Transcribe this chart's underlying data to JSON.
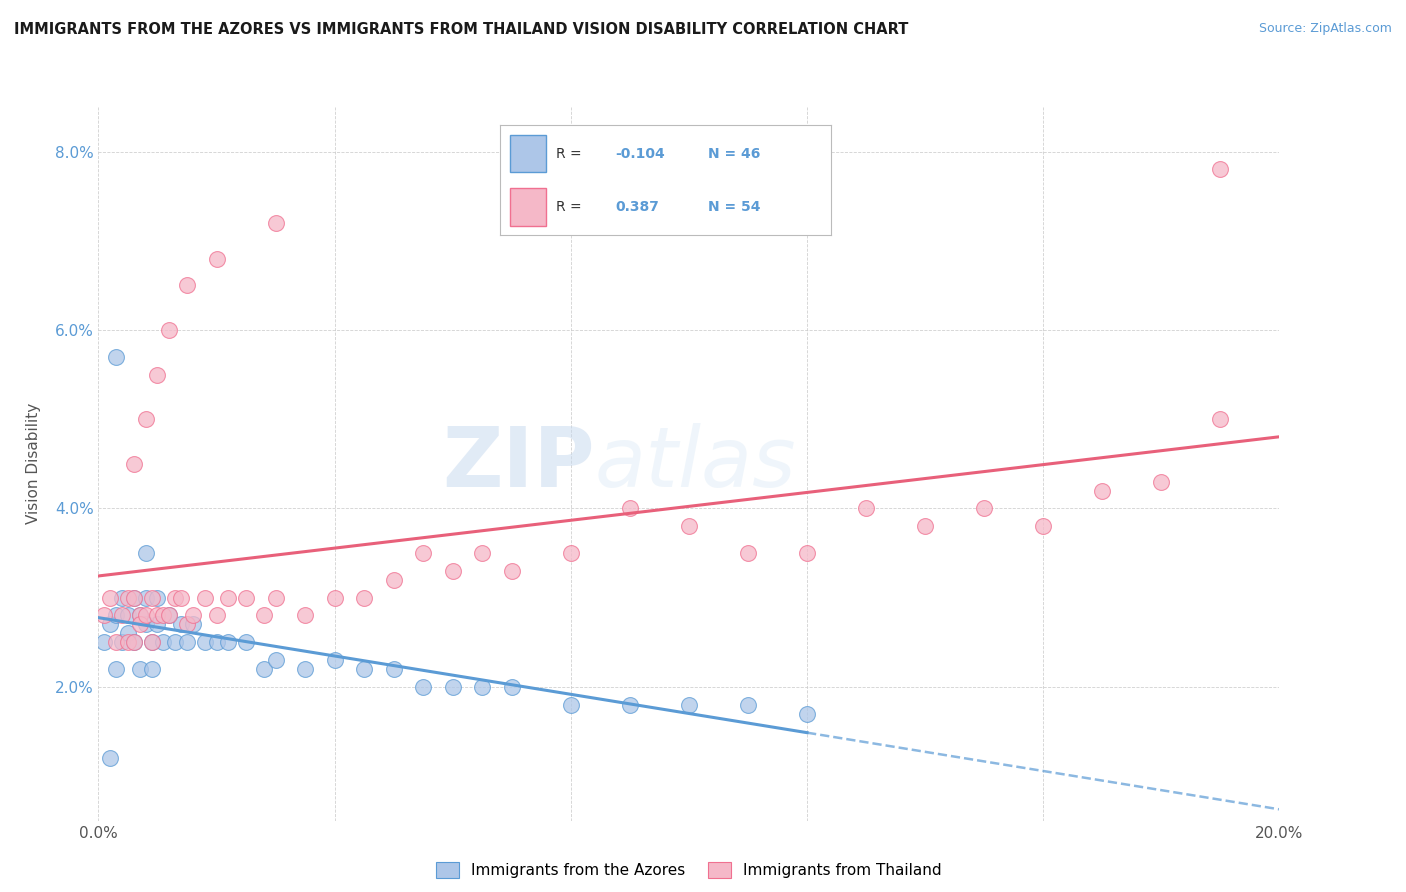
{
  "title": "IMMIGRANTS FROM THE AZORES VS IMMIGRANTS FROM THAILAND VISION DISABILITY CORRELATION CHART",
  "source": "Source: ZipAtlas.com",
  "ylabel": "Vision Disability",
  "x_min": 0.0,
  "x_max": 0.2,
  "y_min": 0.005,
  "y_max": 0.085,
  "azores_R": -0.104,
  "azores_N": 46,
  "thailand_R": 0.387,
  "thailand_N": 54,
  "azores_color": "#adc6e8",
  "thailand_color": "#f5b8c8",
  "azores_edge_color": "#5b9bd5",
  "thailand_edge_color": "#f07090",
  "azores_line_color": "#5b9bd5",
  "thailand_line_color": "#e8607a",
  "watermark_color": "#d0dff0",
  "azores_x": [
    0.001,
    0.002,
    0.003,
    0.003,
    0.004,
    0.004,
    0.005,
    0.005,
    0.006,
    0.006,
    0.007,
    0.007,
    0.008,
    0.008,
    0.009,
    0.009,
    0.01,
    0.01,
    0.011,
    0.012,
    0.013,
    0.014,
    0.015,
    0.016,
    0.018,
    0.02,
    0.022,
    0.025,
    0.028,
    0.03,
    0.035,
    0.04,
    0.045,
    0.05,
    0.055,
    0.06,
    0.065,
    0.07,
    0.08,
    0.09,
    0.1,
    0.11,
    0.12,
    0.003,
    0.002,
    0.008
  ],
  "azores_y": [
    0.025,
    0.027,
    0.028,
    0.022,
    0.03,
    0.025,
    0.026,
    0.028,
    0.03,
    0.025,
    0.028,
    0.022,
    0.027,
    0.03,
    0.025,
    0.022,
    0.03,
    0.027,
    0.025,
    0.028,
    0.025,
    0.027,
    0.025,
    0.027,
    0.025,
    0.025,
    0.025,
    0.025,
    0.022,
    0.023,
    0.022,
    0.023,
    0.022,
    0.022,
    0.02,
    0.02,
    0.02,
    0.02,
    0.018,
    0.018,
    0.018,
    0.018,
    0.017,
    0.057,
    0.012,
    0.035
  ],
  "thailand_x": [
    0.001,
    0.002,
    0.003,
    0.004,
    0.005,
    0.005,
    0.006,
    0.006,
    0.007,
    0.007,
    0.008,
    0.009,
    0.009,
    0.01,
    0.011,
    0.012,
    0.013,
    0.014,
    0.015,
    0.016,
    0.018,
    0.02,
    0.022,
    0.025,
    0.028,
    0.03,
    0.035,
    0.04,
    0.045,
    0.05,
    0.055,
    0.06,
    0.065,
    0.07,
    0.08,
    0.09,
    0.1,
    0.11,
    0.12,
    0.13,
    0.14,
    0.15,
    0.16,
    0.17,
    0.18,
    0.19,
    0.006,
    0.008,
    0.01,
    0.012,
    0.015,
    0.02,
    0.03,
    0.19
  ],
  "thailand_y": [
    0.028,
    0.03,
    0.025,
    0.028,
    0.03,
    0.025,
    0.03,
    0.025,
    0.028,
    0.027,
    0.028,
    0.025,
    0.03,
    0.028,
    0.028,
    0.028,
    0.03,
    0.03,
    0.027,
    0.028,
    0.03,
    0.028,
    0.03,
    0.03,
    0.028,
    0.03,
    0.028,
    0.03,
    0.03,
    0.032,
    0.035,
    0.033,
    0.035,
    0.033,
    0.035,
    0.04,
    0.038,
    0.035,
    0.035,
    0.04,
    0.038,
    0.04,
    0.038,
    0.042,
    0.043,
    0.05,
    0.045,
    0.05,
    0.055,
    0.06,
    0.065,
    0.068,
    0.072,
    0.078
  ]
}
